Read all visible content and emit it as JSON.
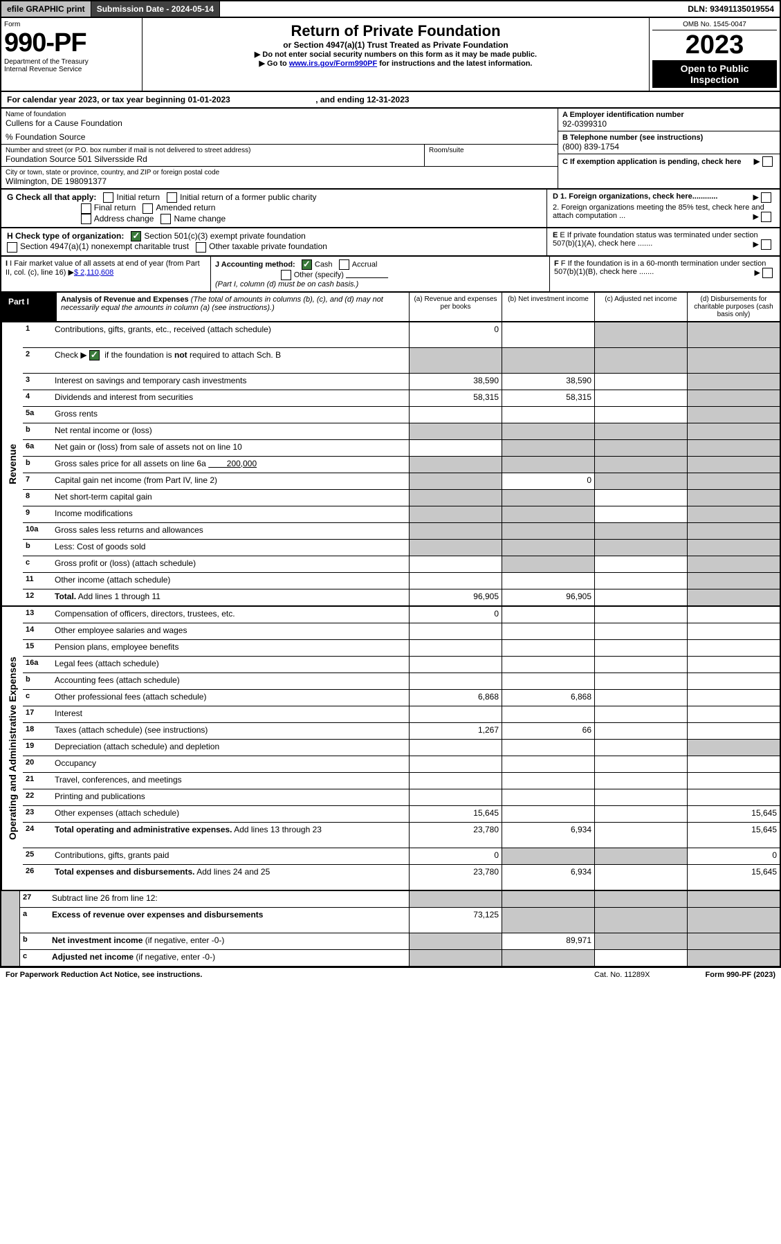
{
  "header": {
    "efile": "efile GRAPHIC print",
    "subdate_label": "Submission Date - 2024-05-14",
    "dln": "DLN: 93491135019554",
    "form_label": "Form",
    "form_number": "990-PF",
    "dept": "Department of the Treasury",
    "irs": "Internal Revenue Service",
    "title": "Return of Private Foundation",
    "subtitle": "or Section 4947(a)(1) Trust Treated as Private Foundation",
    "note1": "▶ Do not enter social security numbers on this form as it may be made public.",
    "note2_prefix": "▶ Go to ",
    "note2_link": "www.irs.gov/Form990PF",
    "note2_suffix": " for instructions and the latest information.",
    "omb": "OMB No. 1545-0047",
    "year": "2023",
    "open": "Open to Public Inspection"
  },
  "calendar": {
    "text_prefix": "For calendar year 2023, or tax year beginning ",
    "begin": "01-01-2023",
    "mid": ", and ending ",
    "end": "12-31-2023"
  },
  "info": {
    "name_label": "Name of foundation",
    "name": "Cullens for a Cause Foundation",
    "care_of": "% Foundation Source",
    "addr_label": "Number and street (or P.O. box number if mail is not delivered to street address)",
    "addr": "Foundation Source 501 Silversside Rd",
    "room_label": "Room/suite",
    "city_label": "City or town, state or province, country, and ZIP or foreign postal code",
    "city": "Wilmington, DE  198091377",
    "ein_label": "A Employer identification number",
    "ein": "92-0399310",
    "phone_label": "B Telephone number (see instructions)",
    "phone": "(800) 839-1754",
    "c_label": "C If exemption application is pending, check here"
  },
  "checks": {
    "g_label": "G Check all that apply:",
    "g_items": [
      "Initial return",
      "Initial return of a former public charity",
      "Final return",
      "Amended return",
      "Address change",
      "Name change"
    ],
    "h_label": "H Check type of organization:",
    "h1": "Section 501(c)(3) exempt private foundation",
    "h2": "Section 4947(a)(1) nonexempt charitable trust",
    "h3": "Other taxable private foundation",
    "d1": "D 1. Foreign organizations, check here............",
    "d2": "2. Foreign organizations meeting the 85% test, check here and attach computation ...",
    "e": "E If private foundation status was terminated under section 507(b)(1)(A), check here .......",
    "i_label": "I Fair market value of all assets at end of year (from Part II, col. (c), line 16)",
    "i_value": "$  2,110,608",
    "j_label": "J Accounting method:",
    "j_cash": "Cash",
    "j_accrual": "Accrual",
    "j_other": "Other (specify)",
    "j_note": "(Part I, column (d) must be on cash basis.)",
    "f_label": "F If the foundation is in a 60-month termination under section 507(b)(1)(B), check here ......."
  },
  "part1": {
    "label": "Part I",
    "title": "Analysis of Revenue and Expenses",
    "desc": "(The total of amounts in columns (b), (c), and (d) may not necessarily equal the amounts in column (a) (see instructions).)",
    "col_a": "(a) Revenue and expenses per books",
    "col_b": "(b) Net investment income",
    "col_c": "(c) Adjusted net income",
    "col_d": "(d) Disbursements for charitable purposes (cash basis only)"
  },
  "vert_labels": {
    "revenue": "Revenue",
    "expenses": "Operating and Administrative Expenses"
  },
  "rows": [
    {
      "no": "1",
      "desc": "Contributions, gifts, grants, etc., received (attach schedule)",
      "a": "0",
      "b": "",
      "c": "grey",
      "d": "grey",
      "tall": true
    },
    {
      "no": "2",
      "desc_html": "Check ▶ <span class='checksquare checked'></span> if the foundation is <b>not</b> required to attach Sch. B",
      "a": "grey",
      "b": "grey",
      "c": "grey",
      "d": "grey",
      "tall": true
    },
    {
      "no": "3",
      "desc": "Interest on savings and temporary cash investments",
      "a": "38,590",
      "b": "38,590",
      "c": "",
      "d": "grey"
    },
    {
      "no": "4",
      "desc": "Dividends and interest from securities",
      "a": "58,315",
      "b": "58,315",
      "c": "",
      "d": "grey"
    },
    {
      "no": "5a",
      "desc": "Gross rents",
      "a": "",
      "b": "",
      "c": "",
      "d": "grey"
    },
    {
      "no": "b",
      "desc": "Net rental income or (loss)",
      "a": "grey",
      "b": "grey",
      "c": "grey",
      "d": "grey"
    },
    {
      "no": "6a",
      "desc": "Net gain or (loss) from sale of assets not on line 10",
      "a": "",
      "b": "grey",
      "c": "grey",
      "d": "grey"
    },
    {
      "no": "b",
      "desc_html": "Gross sales price for all assets on line 6a <span class='uline'>&nbsp;&nbsp;&nbsp;&nbsp;&nbsp;&nbsp;&nbsp;&nbsp;200,000</span>",
      "a": "grey",
      "b": "grey",
      "c": "grey",
      "d": "grey"
    },
    {
      "no": "7",
      "desc": "Capital gain net income (from Part IV, line 2)",
      "a": "grey",
      "b": "0",
      "c": "grey",
      "d": "grey"
    },
    {
      "no": "8",
      "desc": "Net short-term capital gain",
      "a": "grey",
      "b": "grey",
      "c": "",
      "d": "grey"
    },
    {
      "no": "9",
      "desc": "Income modifications",
      "a": "grey",
      "b": "grey",
      "c": "",
      "d": "grey"
    },
    {
      "no": "10a",
      "desc": "Gross sales less returns and allowances",
      "a": "grey",
      "b": "grey",
      "c": "grey",
      "d": "grey"
    },
    {
      "no": "b",
      "desc": "Less: Cost of goods sold",
      "a": "grey",
      "b": "grey",
      "c": "grey",
      "d": "grey"
    },
    {
      "no": "c",
      "desc": "Gross profit or (loss) (attach schedule)",
      "a": "",
      "b": "grey",
      "c": "",
      "d": "grey"
    },
    {
      "no": "11",
      "desc": "Other income (attach schedule)",
      "a": "",
      "b": "",
      "c": "",
      "d": "grey"
    },
    {
      "no": "12",
      "desc_html": "<b>Total.</b> Add lines 1 through 11",
      "a": "96,905",
      "b": "96,905",
      "c": "",
      "d": "grey"
    }
  ],
  "exp_rows": [
    {
      "no": "13",
      "desc": "Compensation of officers, directors, trustees, etc.",
      "a": "0",
      "b": "",
      "c": "",
      "d": ""
    },
    {
      "no": "14",
      "desc": "Other employee salaries and wages",
      "a": "",
      "b": "",
      "c": "",
      "d": ""
    },
    {
      "no": "15",
      "desc": "Pension plans, employee benefits",
      "a": "",
      "b": "",
      "c": "",
      "d": ""
    },
    {
      "no": "16a",
      "desc": "Legal fees (attach schedule)",
      "a": "",
      "b": "",
      "c": "",
      "d": ""
    },
    {
      "no": "b",
      "desc": "Accounting fees (attach schedule)",
      "a": "",
      "b": "",
      "c": "",
      "d": ""
    },
    {
      "no": "c",
      "desc": "Other professional fees (attach schedule)",
      "a": "6,868",
      "b": "6,868",
      "c": "",
      "d": ""
    },
    {
      "no": "17",
      "desc": "Interest",
      "a": "",
      "b": "",
      "c": "",
      "d": ""
    },
    {
      "no": "18",
      "desc": "Taxes (attach schedule) (see instructions)",
      "a": "1,267",
      "b": "66",
      "c": "",
      "d": ""
    },
    {
      "no": "19",
      "desc": "Depreciation (attach schedule) and depletion",
      "a": "",
      "b": "",
      "c": "",
      "d": "grey"
    },
    {
      "no": "20",
      "desc": "Occupancy",
      "a": "",
      "b": "",
      "c": "",
      "d": ""
    },
    {
      "no": "21",
      "desc": "Travel, conferences, and meetings",
      "a": "",
      "b": "",
      "c": "",
      "d": ""
    },
    {
      "no": "22",
      "desc": "Printing and publications",
      "a": "",
      "b": "",
      "c": "",
      "d": ""
    },
    {
      "no": "23",
      "desc": "Other expenses (attach schedule)",
      "a": "15,645",
      "b": "",
      "c": "",
      "d": "15,645"
    },
    {
      "no": "24",
      "desc_html": "<b>Total operating and administrative expenses.</b> Add lines 13 through 23",
      "a": "23,780",
      "b": "6,934",
      "c": "",
      "d": "15,645",
      "tall": true
    },
    {
      "no": "25",
      "desc": "Contributions, gifts, grants paid",
      "a": "0",
      "b": "grey",
      "c": "grey",
      "d": "0"
    },
    {
      "no": "26",
      "desc_html": "<b>Total expenses and disbursements.</b> Add lines 24 and 25",
      "a": "23,780",
      "b": "6,934",
      "c": "",
      "d": "15,645",
      "tall": true
    }
  ],
  "bottom_rows": [
    {
      "no": "27",
      "desc": "Subtract line 26 from line 12:",
      "a": "grey",
      "b": "grey",
      "c": "grey",
      "d": "grey"
    },
    {
      "no": "a",
      "desc_html": "<b>Excess of revenue over expenses and disbursements</b>",
      "a": "73,125",
      "b": "grey",
      "c": "grey",
      "d": "grey",
      "tall": true
    },
    {
      "no": "b",
      "desc_html": "<b>Net investment income</b> (if negative, enter -0-)",
      "a": "grey",
      "b": "89,971",
      "c": "grey",
      "d": "grey"
    },
    {
      "no": "c",
      "desc_html": "<b>Adjusted net income</b> (if negative, enter -0-)",
      "a": "grey",
      "b": "grey",
      "c": "",
      "d": "grey"
    }
  ],
  "footer": {
    "paperwork": "For Paperwork Reduction Act Notice, see instructions.",
    "cat": "Cat. No. 11289X",
    "form": "Form 990-PF (2023)"
  }
}
